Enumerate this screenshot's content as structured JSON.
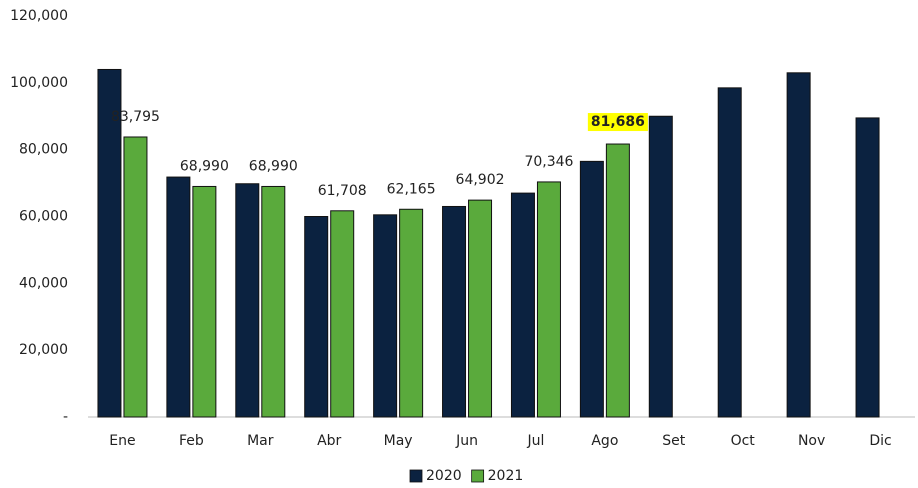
{
  "chart_data": {
    "type": "bar",
    "categories": [
      "Ene",
      "Feb",
      "Mar",
      "Abr",
      "May",
      "Jun",
      "Jul",
      "Ago",
      "Set",
      "Oct",
      "Nov",
      "Dic"
    ],
    "series": [
      {
        "name": "2020",
        "color": "#0b2240",
        "values": [
          104000,
          71800,
          69800,
          60000,
          60500,
          63000,
          67000,
          76500,
          90000,
          98500,
          103000,
          89500
        ]
      },
      {
        "name": "2021",
        "color": "#5aaa3c",
        "values": [
          83795,
          68990,
          68990,
          61708,
          62165,
          64902,
          70346,
          81686,
          null,
          null,
          null,
          null
        ],
        "value_labels": [
          "83,795",
          "68,990",
          "68,990",
          "61,708",
          "62,165",
          "64,902",
          "70,346",
          "81,686",
          null,
          null,
          null,
          null
        ]
      }
    ],
    "ylim": [
      0,
      120000
    ],
    "yticks": [
      {
        "value": 0,
        "label": "-"
      },
      {
        "value": 20000,
        "label": "20,000"
      },
      {
        "value": 40000,
        "label": "40,000"
      },
      {
        "value": 60000,
        "label": "60,000"
      },
      {
        "value": 80000,
        "label": "80,000"
      },
      {
        "value": 100000,
        "label": "100,000"
      },
      {
        "value": 120000,
        "label": "120,000"
      }
    ],
    "grid": false,
    "legend": "bottom",
    "highlight": {
      "series": 1,
      "index": 7,
      "color": "#ffff00"
    }
  }
}
